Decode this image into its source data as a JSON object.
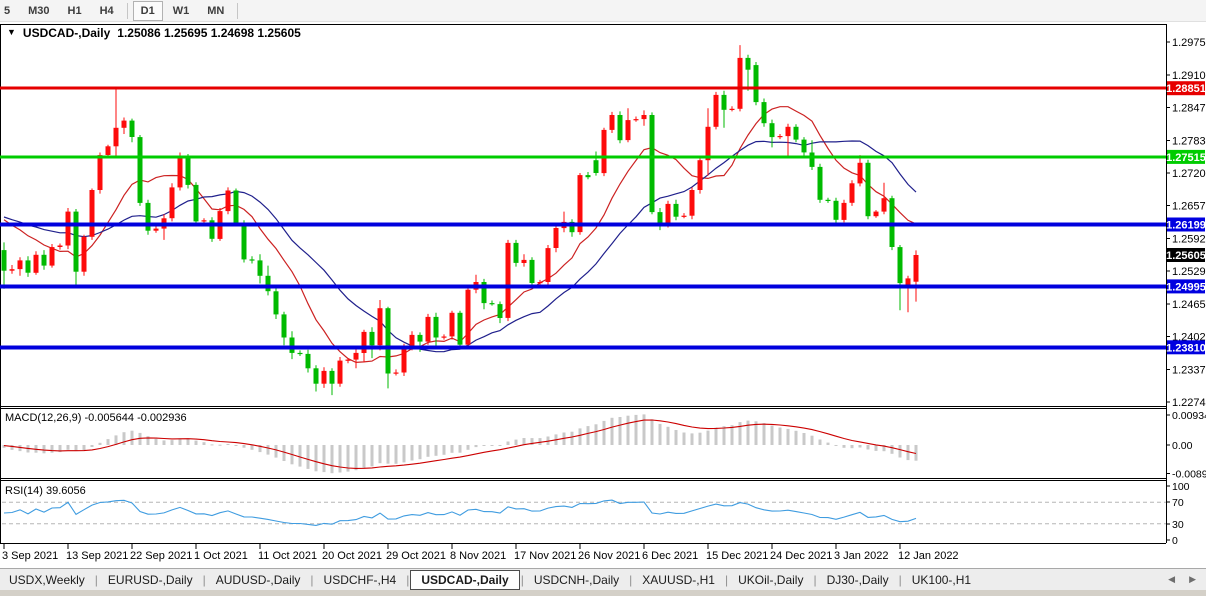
{
  "toolbar": {
    "timeframes": [
      "5",
      "M30",
      "H1",
      "H4",
      "D1",
      "W1",
      "MN"
    ],
    "active": "D1"
  },
  "chart": {
    "title_symbol": "USDCAD-,Daily",
    "title_ohlc": "1.25086 1.25695 1.24698 1.25605",
    "macd_label": "MACD(12,26,9) -0.005644 -0.002936",
    "rsi_label": "RSI(14) 39.6056"
  },
  "chart_data": {
    "type": "candlestick",
    "symbol": "USDCAD",
    "timeframe": "Daily",
    "ohlc_display": {
      "open": "1.25086",
      "high": "1.25695",
      "low": "1.24698",
      "close": "1.25605"
    },
    "colors": {
      "bull": "#fd0b0b",
      "bear": "#00ba00",
      "hist": "#c9c9c9",
      "macd_signal": "#cc0000",
      "rsi_line": "#3f9ce0",
      "ma_fast": "#cc2222",
      "ma_slow": "#20208c"
    },
    "y_axis_ticks": [
      "1.29750",
      "1.29105",
      "1.28475",
      "1.27830",
      "1.27200",
      "1.26570",
      "1.25925",
      "1.25295",
      "1.24650",
      "1.24020",
      "1.23375",
      "1.22745"
    ],
    "y_axis_range": {
      "max": 1.2975,
      "min": 1.22745
    },
    "price_markers": [
      {
        "price": 1.28851,
        "label": "1.28851",
        "bg": "#e60000"
      },
      {
        "price": 1.27515,
        "label": "1.27515",
        "bg": "#00cc00"
      },
      {
        "price": 1.26199,
        "label": "1.26199",
        "bg": "#0000e0"
      },
      {
        "price": 1.25605,
        "label": "1.25605",
        "bg": "#000000"
      },
      {
        "price": 1.24995,
        "label": "1.24995",
        "bg": "#0000e0"
      },
      {
        "price": 1.2381,
        "label": "1.23810",
        "bg": "#0000e0"
      }
    ],
    "hlines": [
      {
        "price": 1.28851,
        "color": "#e60000",
        "width": 3
      },
      {
        "price": 1.27515,
        "color": "#00cc00",
        "width": 3
      },
      {
        "price": 1.26199,
        "color": "#0000dd",
        "width": 4
      },
      {
        "price": 1.24995,
        "color": "#0000dd",
        "width": 4
      },
      {
        "price": 1.2381,
        "color": "#0000dd",
        "width": 4
      }
    ],
    "moving_averages": [
      {
        "period": 10,
        "color": "#cc2222"
      },
      {
        "period": 20,
        "color": "#20208c"
      }
    ],
    "x_labels": [
      {
        "i": 0,
        "text": "3 Sep 2021"
      },
      {
        "i": 8,
        "text": "13 Sep 2021"
      },
      {
        "i": 16,
        "text": "22 Sep 2021"
      },
      {
        "i": 24,
        "text": "1 Oct 2021"
      },
      {
        "i": 32,
        "text": "11 Oct 2021"
      },
      {
        "i": 40,
        "text": "20 Oct 2021"
      },
      {
        "i": 48,
        "text": "29 Oct 2021"
      },
      {
        "i": 56,
        "text": "8 Nov 2021"
      },
      {
        "i": 64,
        "text": "17 Nov 2021"
      },
      {
        "i": 72,
        "text": "26 Nov 2021"
      },
      {
        "i": 80,
        "text": "6 Dec 2021"
      },
      {
        "i": 88,
        "text": "15 Dec 2021"
      },
      {
        "i": 96,
        "text": "24 Dec 2021"
      },
      {
        "i": 104,
        "text": "3 Jan 2022"
      },
      {
        "i": 112,
        "text": "12 Jan 2022"
      }
    ],
    "macd": {
      "label": "MACD(12,26,9)",
      "value": -0.005644,
      "signal_value": -0.002936,
      "axis_ticks": [
        {
          "v": 0.009345,
          "label": "0.009345"
        },
        {
          "v": 0.0,
          "label": "0.00"
        },
        {
          "v": -0.008903,
          "label": "-0.008903"
        }
      ]
    },
    "rsi": {
      "label": "RSI(14)",
      "value": 39.6056,
      "axis_ticks": [
        {
          "v": 100,
          "label": "100"
        },
        {
          "v": 70,
          "label": "70"
        },
        {
          "v": 30,
          "label": "30"
        },
        {
          "v": 0,
          "label": "0"
        }
      ],
      "levels": [
        70,
        30
      ]
    },
    "candles": [
      [
        1.257,
        1.2585,
        1.2495,
        1.253
      ],
      [
        1.253,
        1.2541,
        1.2524,
        1.2533
      ],
      [
        1.2533,
        1.2556,
        1.252,
        1.255
      ],
      [
        1.255,
        1.2558,
        1.2518,
        1.2526
      ],
      [
        1.2526,
        1.2568,
        1.2522,
        1.2561
      ],
      [
        1.2561,
        1.257,
        1.2532,
        1.254
      ],
      [
        1.254,
        1.2582,
        1.2536,
        1.2576
      ],
      [
        1.2576,
        1.2583,
        1.2571,
        1.2579
      ],
      [
        1.2579,
        1.2652,
        1.2572,
        1.2645
      ],
      [
        1.2645,
        1.265,
        1.2496,
        1.2528
      ],
      [
        1.2528,
        1.26,
        1.252,
        1.2596
      ],
      [
        1.2596,
        1.269,
        1.259,
        1.2687
      ],
      [
        1.2687,
        1.276,
        1.268,
        1.2755
      ],
      [
        1.2755,
        1.2775,
        1.275,
        1.2772
      ],
      [
        1.2772,
        1.2886,
        1.275,
        1.2808
      ],
      [
        1.2808,
        1.2828,
        1.2796,
        1.2822
      ],
      [
        1.2822,
        1.2826,
        1.278,
        1.279
      ],
      [
        1.279,
        1.2794,
        1.2656,
        1.2662
      ],
      [
        1.2662,
        1.2668,
        1.26,
        1.2608
      ],
      [
        1.2608,
        1.2616,
        1.2604,
        1.2612
      ],
      [
        1.2612,
        1.264,
        1.259,
        1.2632
      ],
      [
        1.2632,
        1.27,
        1.2626,
        1.2692
      ],
      [
        1.2692,
        1.276,
        1.2686,
        1.2752
      ],
      [
        1.2752,
        1.2757,
        1.269,
        1.2697
      ],
      [
        1.2697,
        1.2702,
        1.262,
        1.2626
      ],
      [
        1.2626,
        1.2632,
        1.2621,
        1.2628
      ],
      [
        1.2628,
        1.2634,
        1.2586,
        1.2592
      ],
      [
        1.2592,
        1.2652,
        1.2588,
        1.2646
      ],
      [
        1.2646,
        1.2692,
        1.264,
        1.2686
      ],
      [
        1.2686,
        1.269,
        1.2616,
        1.2622
      ],
      [
        1.2622,
        1.2628,
        1.2546,
        1.2552
      ],
      [
        1.2552,
        1.2558,
        1.2544,
        1.255
      ],
      [
        1.255,
        1.2562,
        1.2505,
        1.252
      ],
      [
        1.252,
        1.254,
        1.2482,
        1.249
      ],
      [
        1.249,
        1.2498,
        1.2436,
        1.2445
      ],
      [
        1.2445,
        1.245,
        1.2385,
        1.24
      ],
      [
        1.24,
        1.2412,
        1.2358,
        1.237
      ],
      [
        1.237,
        1.2375,
        1.2364,
        1.2368
      ],
      [
        1.2368,
        1.2376,
        1.2332,
        1.234
      ],
      [
        1.234,
        1.2346,
        1.2295,
        1.231
      ],
      [
        1.231,
        1.2342,
        1.2302,
        1.2335
      ],
      [
        1.2335,
        1.234,
        1.2288,
        1.231
      ],
      [
        1.231,
        1.2362,
        1.2304,
        1.2355
      ],
      [
        1.2355,
        1.236,
        1.235,
        1.2357
      ],
      [
        1.2357,
        1.238,
        1.234,
        1.237
      ],
      [
        1.237,
        1.2415,
        1.2352,
        1.2411
      ],
      [
        1.2411,
        1.242,
        1.236,
        1.2385
      ],
      [
        1.2385,
        1.2473,
        1.2375,
        1.2457
      ],
      [
        1.2457,
        1.246,
        1.2301,
        1.233
      ],
      [
        1.233,
        1.2338,
        1.2326,
        1.2332
      ],
      [
        1.2332,
        1.2388,
        1.2325,
        1.2382
      ],
      [
        1.2382,
        1.2412,
        1.2375,
        1.2405
      ],
      [
        1.2405,
        1.241,
        1.2372,
        1.2392
      ],
      [
        1.2392,
        1.2446,
        1.2386,
        1.244
      ],
      [
        1.244,
        1.2448,
        1.238,
        1.24
      ],
      [
        1.24,
        1.2406,
        1.2396,
        1.2402
      ],
      [
        1.2402,
        1.2452,
        1.2396,
        1.2448
      ],
      [
        1.2448,
        1.2452,
        1.238,
        1.2386
      ],
      [
        1.2386,
        1.2498,
        1.2382,
        1.2493
      ],
      [
        1.2493,
        1.2522,
        1.2486,
        1.2508
      ],
      [
        1.2508,
        1.2514,
        1.2455,
        1.2467
      ],
      [
        1.2467,
        1.2472,
        1.2462,
        1.2465
      ],
      [
        1.2465,
        1.247,
        1.2428,
        1.2438
      ],
      [
        1.2438,
        1.259,
        1.2432,
        1.2584
      ],
      [
        1.2584,
        1.259,
        1.2538,
        1.2545
      ],
      [
        1.2545,
        1.2562,
        1.2538,
        1.2551
      ],
      [
        1.2551,
        1.2556,
        1.2498,
        1.2506
      ],
      [
        1.2506,
        1.2512,
        1.2502,
        1.2508
      ],
      [
        1.2508,
        1.258,
        1.2502,
        1.2574
      ],
      [
        1.2574,
        1.2618,
        1.2566,
        1.2613
      ],
      [
        1.2613,
        1.2645,
        1.2605,
        1.2625
      ],
      [
        1.2625,
        1.263,
        1.2596,
        1.2605
      ],
      [
        1.2605,
        1.272,
        1.26,
        1.2716
      ],
      [
        1.2716,
        1.2722,
        1.2708,
        1.2712
      ],
      [
        1.2745,
        1.2762,
        1.2715,
        1.272
      ],
      [
        1.272,
        1.2808,
        1.2714,
        1.2804
      ],
      [
        1.2804,
        1.2839,
        1.2798,
        1.2833
      ],
      [
        1.2833,
        1.284,
        1.2778,
        1.2784
      ],
      [
        1.2784,
        1.2846,
        1.278,
        1.2823
      ],
      [
        1.2823,
        1.283,
        1.282,
        1.2825
      ],
      [
        1.2825,
        1.2842,
        1.2812,
        1.2833
      ],
      [
        1.2833,
        1.2838,
        1.264,
        1.2644
      ],
      [
        1.2644,
        1.2652,
        1.2609,
        1.262
      ],
      [
        1.262,
        1.2666,
        1.2614,
        1.266
      ],
      [
        1.266,
        1.2668,
        1.2628,
        1.2635
      ],
      [
        1.2635,
        1.2642,
        1.2632,
        1.2637
      ],
      [
        1.2637,
        1.2692,
        1.263,
        1.2687
      ],
      [
        1.2687,
        1.275,
        1.268,
        1.2745
      ],
      [
        1.2745,
        1.2846,
        1.2715,
        1.281
      ],
      [
        1.281,
        1.2878,
        1.2805,
        1.2872
      ],
      [
        1.2872,
        1.288,
        1.2808,
        1.2843
      ],
      [
        1.2843,
        1.285,
        1.284,
        1.2845
      ],
      [
        1.2845,
        1.2969,
        1.284,
        1.2944
      ],
      [
        1.2944,
        1.295,
        1.288,
        1.2921
      ],
      [
        1.293,
        1.2936,
        1.2852,
        1.2858
      ],
      [
        1.2858,
        1.2865,
        1.281,
        1.2817
      ],
      [
        1.2817,
        1.2824,
        1.277,
        1.279
      ],
      [
        1.279,
        1.2796,
        1.2786,
        1.2792
      ],
      [
        1.2792,
        1.2816,
        1.275,
        1.281
      ],
      [
        1.281,
        1.2815,
        1.278,
        1.2785
      ],
      [
        1.2785,
        1.279,
        1.2752,
        1.276
      ],
      [
        1.276,
        1.2784,
        1.2726,
        1.2732
      ],
      [
        1.2732,
        1.2738,
        1.2662,
        1.2668
      ],
      [
        1.2668,
        1.2672,
        1.2662,
        1.2666
      ],
      [
        1.2666,
        1.2672,
        1.2622,
        1.2629
      ],
      [
        1.2629,
        1.2668,
        1.2624,
        1.2662
      ],
      [
        1.2662,
        1.2706,
        1.2656,
        1.27
      ],
      [
        1.27,
        1.2755,
        1.2694,
        1.274
      ],
      [
        1.274,
        1.2746,
        1.263,
        1.2636
      ],
      [
        1.2636,
        1.2648,
        1.2633,
        1.2645
      ],
      [
        1.2645,
        1.2701,
        1.264,
        1.2671
      ],
      [
        1.2671,
        1.2676,
        1.257,
        1.2576
      ],
      [
        1.2576,
        1.258,
        1.2453,
        1.2506
      ],
      [
        1.2501,
        1.252,
        1.2449,
        1.2515
      ],
      [
        1.25086,
        1.25695,
        1.24698,
        1.25605
      ]
    ]
  },
  "tabs": {
    "items": [
      "USDX,Weekly",
      "EURUSD-,Daily",
      "AUDUSD-,Daily",
      "USDCHF-,H4",
      "USDCAD-,Daily",
      "USDCNH-,Daily",
      "XAUUSD-,H1",
      "UKOil-,Daily",
      "DJ30-,Daily",
      "UK100-,H1"
    ],
    "active_index": 4,
    "scroll_left_icon": "◀",
    "scroll_right_icon": "▶"
  }
}
